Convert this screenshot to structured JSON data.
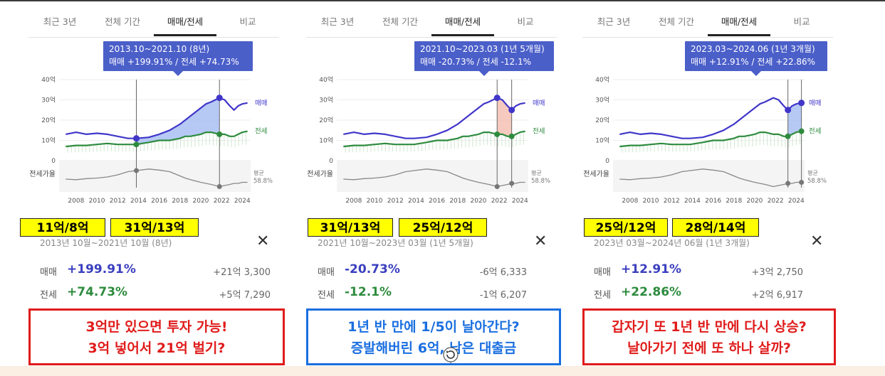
{
  "tabs": [
    "최근 3년",
    "전체 기간",
    "매매/전세",
    "비교"
  ],
  "active_tab_index": 2,
  "axis": {
    "y_ticks": [
      "40억",
      "30억",
      "20억",
      "10억",
      "0"
    ],
    "ratio_label": "전세가율",
    "avg_label": "평균",
    "avg_value": "58.8%",
    "x_ticks": [
      "2008",
      "2010",
      "2012",
      "2014",
      "2016",
      "2018",
      "2020",
      "2022",
      "2024"
    ],
    "series_sale_label": "매매",
    "series_jeonse_label": "전세"
  },
  "colors": {
    "sale": "#4036c9",
    "jeonse": "#2e8b3e",
    "ratio": "#888888",
    "up_fill": "#9db7f0",
    "down_fill": "#f3b8a8",
    "tooltip": "#4b5fc9"
  },
  "panels": [
    {
      "tooltip_line1": "2013.10~2021.10 (8년)",
      "tooltip_line2": "매매 +199.91%  /  전세 +74.73%",
      "yellow_from": "11억/8억",
      "yellow_to": "31억/13억",
      "period_text": "2013년 10월~2021년 10월 (8년)",
      "sale_label": "매매",
      "sale_pct": "+199.91%",
      "sale_amount": "+21억 3,300",
      "jeonse_label": "전세",
      "jeonse_pct": "+74.73%",
      "jeonse_amount": "+5억 7,290",
      "callout_line1": "3억만 있으면 투자 가능!",
      "callout_line2": "3억 넣어서 21억 벌기?",
      "close_symbol": "✕"
    },
    {
      "tooltip_line1": "2021.10~2023.03 (1년 5개월)",
      "tooltip_line2": "매매 -20.73%  /  전세 -12.1%",
      "yellow_from": "31억/13억",
      "yellow_to": "25억/12억",
      "period_text": "2021년 10월~2023년 03월 (1년 5개월)",
      "sale_label": "매매",
      "sale_pct": "-20.73%",
      "sale_amount": "-6억 6,333",
      "jeonse_label": "전세",
      "jeonse_pct": "-12.1%",
      "jeonse_amount": "-1억 6,207",
      "callout_line1": "1년 반 만에 1/5이 날아간다?",
      "callout_line2": "증발해버린 6억, 남은 대출금",
      "close_symbol": "✕"
    },
    {
      "tooltip_line1": "2023.03~2024.06 (1년 3개월)",
      "tooltip_line2": "매매 +12.91%  /  전세 +22.86%",
      "yellow_from": "25억/12억",
      "yellow_to": "28억/14억",
      "period_text": "2023년 03월~2024년 06월 (1년 3개월)",
      "sale_label": "매매",
      "sale_pct": "+12.91%",
      "sale_amount": "+3억 2,750",
      "jeonse_label": "전세",
      "jeonse_pct": "+22.86%",
      "jeonse_amount": "+2억 6,917",
      "callout_line1": "갑자기 또 1년 반 만에 다시 상승?",
      "callout_line2": "날아가기 전에 또 하나 살까?",
      "close_symbol": "✕"
    }
  ],
  "chart_data": {
    "type": "line",
    "title": "",
    "x": [
      2007.0,
      2008.0,
      2009.0,
      2010.0,
      2011.0,
      2012.0,
      2013.0,
      2013.8,
      2015.0,
      2016.0,
      2017.0,
      2018.0,
      2018.5,
      2019.0,
      2020.0,
      2020.5,
      2021.0,
      2021.8,
      2022.3,
      2022.8,
      2023.2,
      2023.6,
      2024.0,
      2024.5
    ],
    "series": [
      {
        "name": "매매",
        "unit": "억",
        "values": [
          13,
          14,
          13,
          13.5,
          13,
          12,
          11,
          11,
          11.5,
          13,
          15,
          18,
          20,
          22,
          26,
          28,
          29,
          31,
          30,
          27,
          25,
          27,
          28,
          28.5
        ]
      },
      {
        "name": "전세",
        "unit": "억",
        "values": [
          7,
          7.5,
          7.5,
          8,
          8.5,
          8,
          8,
          8,
          9,
          10,
          10,
          11,
          12,
          12,
          13,
          14,
          14,
          13,
          13,
          12,
          12,
          13,
          14,
          14.5
        ]
      },
      {
        "name": "전세가율",
        "unit": "%",
        "values": [
          56,
          55,
          57,
          58,
          60,
          64,
          70,
          72,
          75,
          73,
          70,
          62,
          58,
          55,
          50,
          48,
          46,
          42,
          44,
          46,
          48,
          48,
          50,
          50
        ]
      }
    ],
    "ylim": [
      0,
      40
    ],
    "y_ticks": [
      0,
      10,
      20,
      30,
      40
    ],
    "ratio_average": 58.8,
    "periods": [
      {
        "start": 2013.8,
        "end": 2021.8,
        "sale_start": 11,
        "sale_end": 31,
        "jeonse_start": 8,
        "jeonse_end": 13,
        "fill": "up"
      },
      {
        "start": 2021.8,
        "end": 2023.2,
        "sale_start": 31,
        "sale_end": 25,
        "jeonse_start": 13,
        "jeonse_end": 12,
        "fill": "down"
      },
      {
        "start": 2023.2,
        "end": 2024.5,
        "sale_start": 25,
        "sale_end": 28,
        "jeonse_start": 12,
        "jeonse_end": 14,
        "fill": "up"
      }
    ]
  }
}
